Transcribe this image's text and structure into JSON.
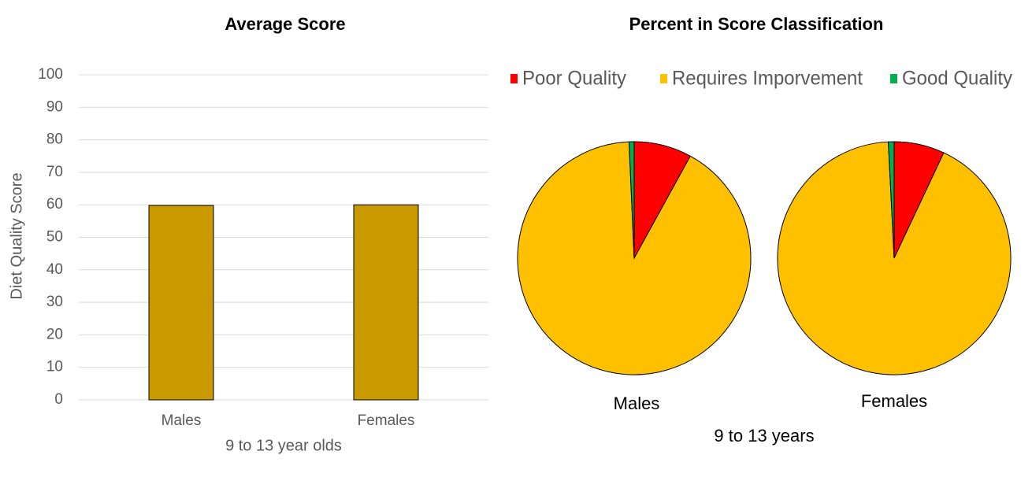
{
  "chart_data": [
    {
      "type": "bar",
      "title": "Average Score",
      "ylabel": "Diet Quality Score",
      "xlabel": "9 to 13 year olds",
      "categories": [
        "Males",
        "Females"
      ],
      "values": [
        59.8,
        60
      ],
      "color": "#c99a00",
      "ylim": [
        0,
        100
      ],
      "yticks": [
        0,
        10,
        20,
        30,
        40,
        50,
        60,
        70,
        80,
        90,
        100
      ],
      "grid": true
    },
    {
      "type": "pie",
      "title": "Percent in Score Classification",
      "xlabel": "9 to 13 years",
      "categories": [
        "Poor Quality",
        "Requires Imporvement",
        "Good Quality"
      ],
      "colors": [
        "#ff0000",
        "#ffc000",
        "#00b050"
      ],
      "legend": "top",
      "pies": [
        {
          "name": "Males",
          "values": [
            8,
            91.3,
            0.7
          ]
        },
        {
          "name": "Females",
          "values": [
            7,
            92.2,
            0.8
          ]
        }
      ]
    }
  ]
}
